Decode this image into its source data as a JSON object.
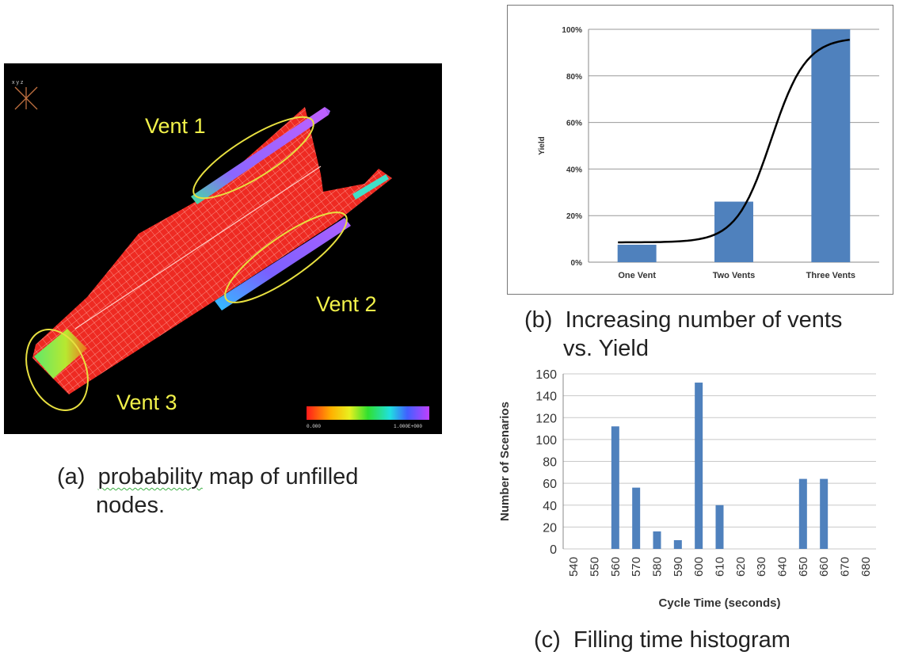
{
  "panel_a": {
    "vent_labels": [
      "Vent 1",
      "Vent 2",
      "Vent 3"
    ],
    "colorbar_min": "0.000",
    "colorbar_max": "1.000E+000",
    "caption_prefix": "(a)",
    "caption_word": "probability",
    "caption_rest": " map of unfilled",
    "caption_line2": "nodes."
  },
  "panel_b_caption": {
    "prefix": "(b)",
    "line1": "Increasing number of vents",
    "line2": "vs. Yield"
  },
  "panel_c_caption": {
    "prefix": "(c)",
    "line1": "Filling time histogram"
  },
  "chart_data": [
    {
      "type": "bar",
      "categories": [
        "One Vent",
        "Two Vents",
        "Three Vents"
      ],
      "values": [
        0.075,
        0.26,
        1.0
      ],
      "ylabel": "Yield",
      "xlabel": "",
      "ylim": [
        0,
        1
      ],
      "yticks": [
        "0%",
        "20%",
        "40%",
        "60%",
        "80%",
        "100%"
      ],
      "grid": true,
      "trend_curve": true,
      "bar_color": "#4f81bd"
    },
    {
      "type": "bar",
      "categories": [
        "540",
        "550",
        "560",
        "570",
        "580",
        "590",
        "600",
        "610",
        "620",
        "630",
        "640",
        "650",
        "660",
        "670",
        "680"
      ],
      "values": [
        0,
        0,
        112,
        56,
        16,
        8,
        152,
        40,
        0,
        0,
        0,
        64,
        64,
        0,
        0
      ],
      "xlabel": "Cycle Time (seconds)",
      "ylabel": "Number of Scenarios",
      "ylim": [
        0,
        160
      ],
      "yticks": [
        "0",
        "20",
        "40",
        "60",
        "80",
        "100",
        "120",
        "140",
        "160"
      ],
      "grid": true,
      "bar_color": "#4f81bd"
    }
  ]
}
